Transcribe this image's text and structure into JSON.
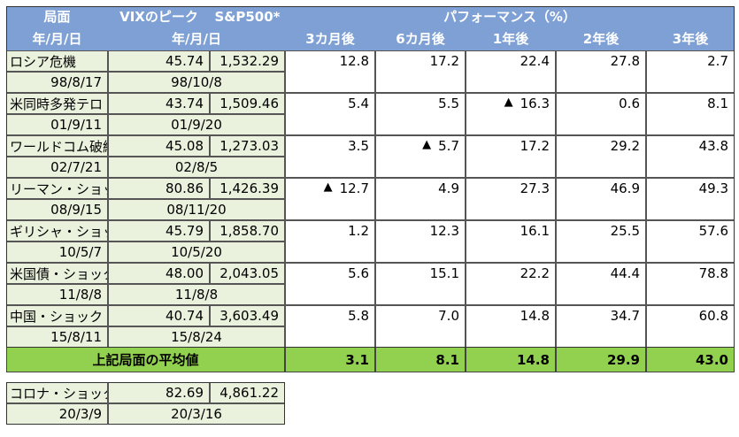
{
  "headers": {
    "phase": "局面",
    "date_format": "年/月/日",
    "vix_peak": "VIXのピーク",
    "sp500": "S&P500*",
    "date_format2": "年/月/日",
    "performance": "パフォーマンス（%）",
    "periods": [
      "3カ月後",
      "6カ月後",
      "1年後",
      "2年後",
      "3年後"
    ]
  },
  "rows": [
    {
      "name": "ロシア危機",
      "date": "98/8/17",
      "vix": "45.74",
      "sp": "1,532.29",
      "sp_date": "98/10/8",
      "perf": [
        "12.8",
        "17.2",
        "22.4",
        "27.8",
        "2.7"
      ],
      "neg": [
        false,
        false,
        false,
        false,
        false
      ]
    },
    {
      "name": "米同時多発テロ",
      "date": "01/9/11",
      "vix": "43.74",
      "sp": "1,509.46",
      "sp_date": "01/9/20",
      "perf": [
        "5.4",
        "5.5",
        "16.3",
        "0.6",
        "8.1"
      ],
      "neg": [
        false,
        false,
        true,
        false,
        false
      ]
    },
    {
      "name": "ワールドコム破綻",
      "date": "02/7/21",
      "vix": "45.08",
      "sp": "1,273.03",
      "sp_date": "02/8/5",
      "perf": [
        "3.5",
        "5.7",
        "17.2",
        "29.2",
        "43.8"
      ],
      "neg": [
        false,
        true,
        false,
        false,
        false
      ]
    },
    {
      "name": "リーマン・ショック",
      "date": "08/9/15",
      "vix": "80.86",
      "sp": "1,426.39",
      "sp_date": "08/11/20",
      "perf": [
        "12.7",
        "4.9",
        "27.3",
        "46.9",
        "49.3"
      ],
      "neg": [
        true,
        false,
        false,
        false,
        false
      ]
    },
    {
      "name": "ギリシャ・ショック",
      "date": "10/5/7",
      "vix": "45.79",
      "sp": "1,858.70",
      "sp_date": "10/5/20",
      "perf": [
        "1.2",
        "12.3",
        "16.1",
        "25.5",
        "57.6"
      ],
      "neg": [
        false,
        false,
        false,
        false,
        false
      ]
    },
    {
      "name": "米国債・ショック",
      "date": "11/8/8",
      "vix": "48.00",
      "sp": "2,043.05",
      "sp_date": "11/8/8",
      "perf": [
        "5.6",
        "15.1",
        "22.2",
        "44.4",
        "78.8"
      ],
      "neg": [
        false,
        false,
        false,
        false,
        false
      ]
    },
    {
      "name": "中国・ショック",
      "date": "15/8/11",
      "vix": "40.74",
      "sp": "3,603.49",
      "sp_date": "15/8/24",
      "perf": [
        "5.8",
        "7.0",
        "14.8",
        "34.7",
        "60.8"
      ],
      "neg": [
        false,
        false,
        false,
        false,
        false
      ]
    }
  ],
  "negative_marker": "▲",
  "average": {
    "label": "上記局面の平均値",
    "values": [
      "3.1",
      "8.1",
      "14.8",
      "29.9",
      "43.0"
    ]
  },
  "covid": {
    "name": "コロナ・ショック",
    "date": "20/3/9",
    "vix": "82.69",
    "sp": "4,861.22",
    "sp_date": "20/3/16"
  },
  "colors": {
    "header_bg": "#7ea0d4",
    "light_green": "#eaf1dd",
    "average_bg": "#92d050"
  }
}
